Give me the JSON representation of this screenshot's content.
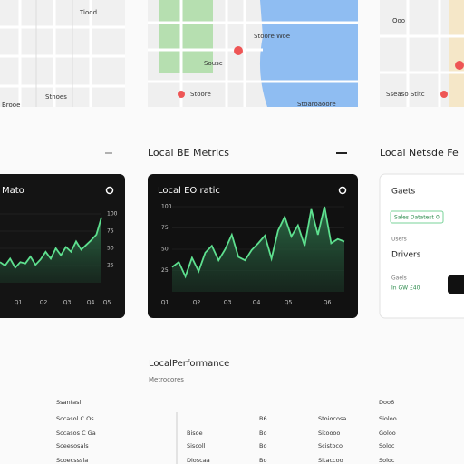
{
  "maps": [
    {
      "labels": [
        "Tiood",
        "Stnoes",
        "Brooe"
      ]
    },
    {
      "labels": [
        "Stoore Woe",
        "Sousc",
        "Stoore",
        "Stoaroaoore"
      ]
    },
    {
      "labels": [
        "Ooo",
        "Sseaso Stitc"
      ]
    }
  ],
  "headings": {
    "metrics": "Local BE Metrics",
    "network": "Local Netsde Fe"
  },
  "cards": [
    {
      "title": "Mato",
      "ylim": [
        0,
        100
      ],
      "yticks": [
        100,
        75,
        50,
        25
      ],
      "xticks": [
        "Q1",
        "Q2",
        "Q3",
        "Q4",
        "Q5"
      ],
      "values": [
        30,
        25,
        35,
        22,
        30,
        28,
        38,
        26,
        34,
        45,
        35,
        50,
        40,
        52,
        45,
        60,
        48,
        55,
        62,
        70,
        95
      ]
    },
    {
      "title": "Local EO ratic",
      "ylim": [
        0,
        100
      ],
      "yticks": [
        100,
        75,
        50,
        25
      ],
      "xticks": [
        "Q1",
        "Q2",
        "Q3",
        "Q4",
        "Q5",
        "Q6"
      ],
      "values": [
        29,
        35,
        18,
        40,
        24,
        46,
        54,
        37,
        50,
        67,
        41,
        37,
        49,
        57,
        66,
        39,
        72,
        88,
        65,
        78,
        54,
        97,
        67,
        100,
        57,
        62,
        59
      ]
    }
  ],
  "side_card": {
    "title": "Gaets",
    "tag": "Sales Datatest",
    "tag_value": "0",
    "label": "Users",
    "heading": "Drivers",
    "sub": "Gaels",
    "value": "In GW £40"
  },
  "performance": {
    "title": "LocalPerformance",
    "subtitle": "Metrocores",
    "rows": [
      [
        "Ssantasll",
        null,
        null,
        null,
        "Doo6"
      ],
      [
        "Sccasol C Os",
        null,
        "B6",
        "Stoiocosa",
        "Sioloo"
      ],
      [
        "Sccasos C Ga",
        "Bisoe",
        "Bo",
        "Sitoooo",
        "Goloo"
      ],
      [
        "Sceesosals",
        "Siscoll",
        "Bo",
        "Scistoco",
        "Soloc"
      ],
      [
        "Scoecsssla",
        "Dioscaa",
        "Bo",
        "Sitaccoo",
        "Soloc"
      ]
    ]
  }
}
